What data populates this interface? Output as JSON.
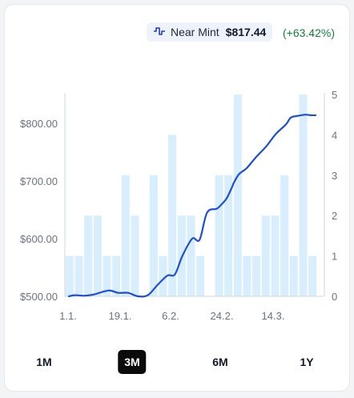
{
  "header": {
    "icon": "chart-line-icon",
    "condition_label": "Near Mint",
    "price": "$817.44",
    "change": "(+63.42%)",
    "change_color": "#15803d"
  },
  "ranges": [
    "1M",
    "3M",
    "6M",
    "1Y"
  ],
  "active_range": "3M",
  "chart_data": {
    "type": "line",
    "title": "",
    "x_ticks": [
      "1.1.",
      "19.1.",
      "6.2.",
      "24.2.",
      "14.3."
    ],
    "y_left": {
      "ticks": [
        "$500.00",
        "$600.00",
        "$700.00",
        "$800.00"
      ],
      "range": [
        500,
        850
      ]
    },
    "y_right": {
      "ticks": [
        "0",
        "1",
        "2",
        "3",
        "4",
        "5"
      ],
      "range": [
        0,
        5
      ]
    },
    "series": [
      {
        "kind": "bar",
        "axis": "right",
        "color": "#d8eefd",
        "values": [
          1,
          1,
          2,
          2,
          1,
          1,
          3,
          2,
          0,
          3,
          1,
          4,
          2,
          2,
          1,
          0,
          3,
          3,
          5,
          1,
          1,
          2,
          2,
          3,
          1,
          5,
          1
        ]
      },
      {
        "kind": "line",
        "axis": "left",
        "color": "#1d4ed8",
        "x": [
          0,
          0.024,
          0.06,
          0.1,
          0.16,
          0.2,
          0.24,
          0.28,
          0.32,
          0.36,
          0.4,
          0.43,
          0.46,
          0.5,
          0.53,
          0.56,
          0.6,
          0.62,
          0.64,
          0.66,
          0.67,
          0.69,
          0.72,
          0.76,
          0.8,
          0.84,
          0.88,
          0.9,
          0.93,
          0.96,
          0.98,
          1.0
        ],
        "values": [
          500,
          502,
          501,
          503,
          510,
          506,
          506,
          500,
          502,
          520,
          536,
          538,
          570,
          600,
          598,
          645,
          652,
          660,
          670,
          688,
          698,
          712,
          722,
          742,
          760,
          782,
          798,
          810,
          813,
          815,
          814,
          814
        ]
      }
    ],
    "grid": false,
    "legend": "none"
  }
}
